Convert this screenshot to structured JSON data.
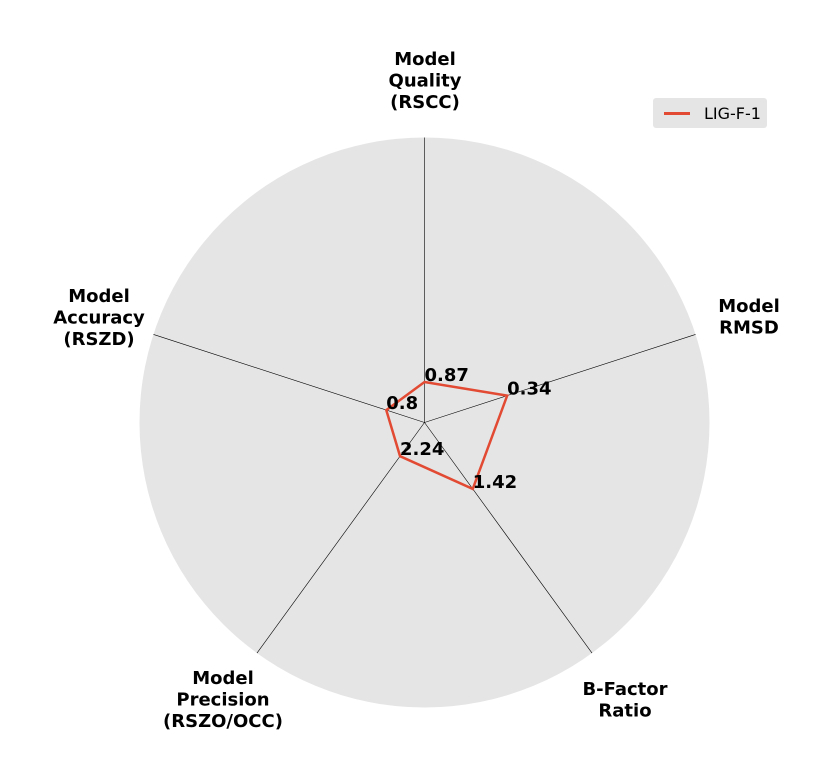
{
  "chart_data": {
    "type": "radar",
    "axes": [
      "Model\nQuality\n(RSCC)",
      "Model\nRMSD",
      "B-Factor\nRatio",
      "Model\nPrecision\n(RSZO/OCC)",
      "Model\nAccuracy\n(RSZD)"
    ],
    "rlim": [
      0,
      1
    ],
    "grid": false,
    "legend": "top-right",
    "series": [
      {
        "name": "LIG-F-1",
        "color": "#e24a33",
        "values": [
          0.142,
          0.305,
          0.288,
          0.146,
          0.141
        ],
        "labels": [
          "0.87",
          "0.34",
          "1.42",
          "2.24",
          "0.8"
        ]
      }
    ]
  },
  "colors": {
    "background": "#e5e5e5",
    "axis_line": "#000000"
  }
}
